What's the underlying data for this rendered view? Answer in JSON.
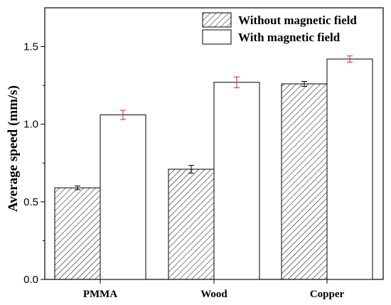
{
  "chart_data": {
    "type": "bar",
    "title": "",
    "xlabel": "",
    "ylabel": "Average speed (mm/s)",
    "categories": [
      "PMMA",
      "Wood",
      "Copper"
    ],
    "ylim": [
      0,
      1.75
    ],
    "yticks": [
      "0.0",
      "0.5",
      "1.0",
      "1.5"
    ],
    "grid": false,
    "legend_position": "top-right",
    "series": [
      {
        "name": "Without magnetic field",
        "values": [
          0.59,
          0.71,
          1.26
        ],
        "errors": [
          0.012,
          0.025,
          0.016
        ],
        "fill": "hatched",
        "error_color": "#000000"
      },
      {
        "name": "With magnetic field",
        "values": [
          1.06,
          1.27,
          1.42
        ],
        "errors": [
          0.03,
          0.035,
          0.02
        ],
        "fill": "#ffffff",
        "error_color": "#d62728"
      }
    ]
  }
}
